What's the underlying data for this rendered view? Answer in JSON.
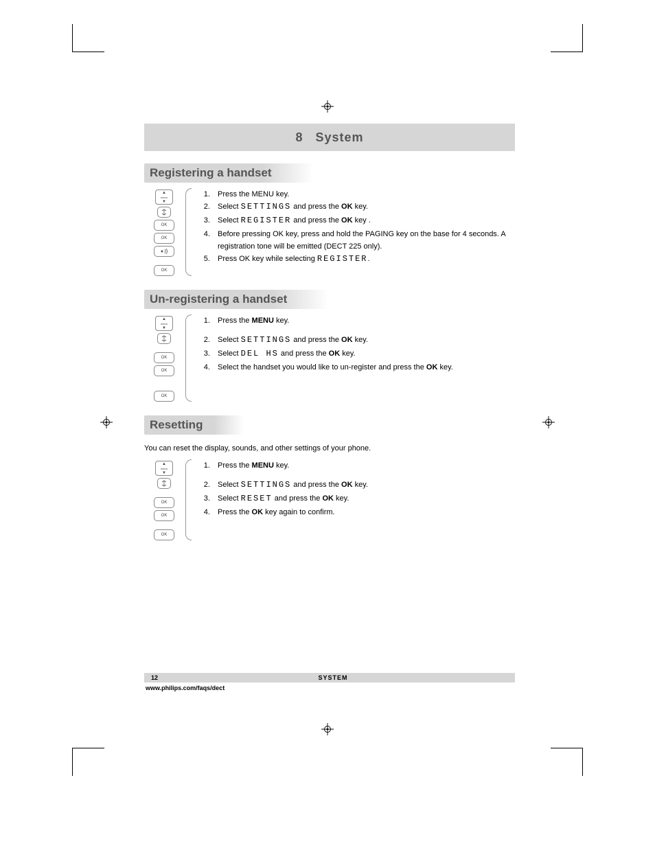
{
  "chapter": {
    "number": "8",
    "title": "System"
  },
  "sections": [
    {
      "title": "Registering a handset",
      "icons": [
        "menu",
        "nav",
        "ok",
        "ok",
        "paging",
        "spacer",
        "ok"
      ],
      "steps": [
        {
          "pre": "Press the MENU key."
        },
        {
          "pre": "Select ",
          "seg": "SETTINGS",
          "mid": " and press the ",
          "bold": "OK",
          "post": " key."
        },
        {
          "pre": "Select ",
          "seg": "REGISTER",
          "mid": " and press the ",
          "bold": "OK",
          "post": " key         ."
        },
        {
          "pre": "Before pressing OK key, press and hold the PAGING key on the base for 4 seconds.  A registration tone will be emitted (DECT 225 only)."
        },
        {
          "pre": "Press OK key while selecting ",
          "seg": "REGISTER",
          "post": "."
        }
      ]
    },
    {
      "title": "Un-registering a handset",
      "icons": [
        "menu",
        "nav",
        "spacer",
        "ok",
        "ok",
        "spacer",
        "spacer",
        "ok"
      ],
      "steps": [
        {
          "pre": "Press the ",
          "bold": "MENU",
          "post": " key."
        },
        {
          "spacer": true
        },
        {
          "pre": "Select ",
          "seg": "SETTINGS",
          "mid": " and press the ",
          "bold": "OK",
          "post": " key."
        },
        {
          "pre": "Select ",
          "seg": "DEL HS",
          "mid": " and press the ",
          "bold": "OK",
          "post": " key."
        },
        {
          "pre": "Select the handset you would like to un-register and press the ",
          "bold": "OK",
          "post": " key."
        }
      ]
    },
    {
      "title": "Resetting",
      "intro": "You can reset the display, sounds, and other settings of your phone.",
      "icons": [
        "menu",
        "nav",
        "spacer",
        "ok",
        "ok",
        "spacer",
        "ok"
      ],
      "steps": [
        {
          "pre": "Press the ",
          "bold": "MENU",
          "post": " key."
        },
        {
          "spacer": true
        },
        {
          "pre": "Select ",
          "seg": "SETTINGS",
          "mid": " and press the ",
          "bold": "OK",
          "post": " key."
        },
        {
          "pre": "Select ",
          "seg": "RESET",
          "mid": " and press the ",
          "bold": "OK",
          "post": " key."
        },
        {
          "pre": "Press the ",
          "bold": "OK",
          "post": " key again to confirm."
        }
      ]
    }
  ],
  "footer": {
    "page": "12",
    "section": "SYSTEM",
    "url": "www.philips.com/faqs/dect"
  }
}
